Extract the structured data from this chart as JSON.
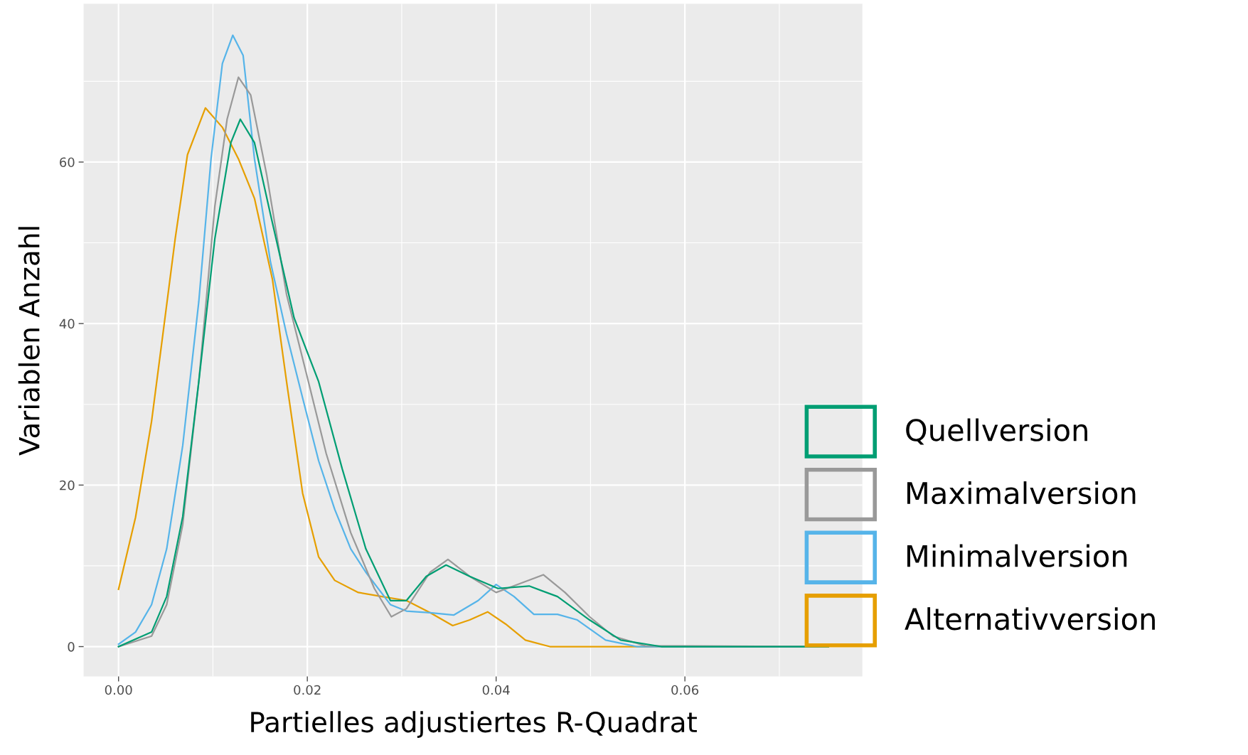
{
  "chart_data": {
    "type": "line",
    "xlabel": "Partielles adjustiertes R-Quadrat",
    "ylabel": "Variablen Anzahl",
    "xlim": [
      -0.0037,
      0.0788
    ],
    "ylim": [
      -3.7,
      79.6
    ],
    "xticks": [
      {
        "value": 0,
        "label": "0.00"
      },
      {
        "value": 0.02,
        "label": "0.02"
      },
      {
        "value": 0.04,
        "label": "0.04"
      },
      {
        "value": 0.06,
        "label": "0.06"
      }
    ],
    "yticks": [
      0,
      20,
      40,
      60
    ],
    "grid": true,
    "legend": "right",
    "marker": "none",
    "line_style": "solid",
    "series": [
      {
        "name": "Quellversion",
        "color": "#009E73",
        "x": [
          0,
          0.0035,
          0.0051,
          0.0068,
          0.0085,
          0.0102,
          0.0119,
          0.0129,
          0.0144,
          0.0161,
          0.0186,
          0.0212,
          0.0237,
          0.0262,
          0.0288,
          0.0305,
          0.0326,
          0.0347,
          0.0372,
          0.0402,
          0.0435,
          0.0465,
          0.0499,
          0.0532,
          0.0575,
          0.0752
        ],
        "values": [
          0,
          1.8,
          6.2,
          16.1,
          32.8,
          50.5,
          62.4,
          65.3,
          62.4,
          53.5,
          40.7,
          32.8,
          22,
          12.1,
          5.7,
          5.7,
          8.7,
          10.1,
          8.7,
          7.2,
          7.5,
          6.2,
          3.3,
          0.8,
          0,
          0
        ]
      },
      {
        "name": "Maximalversion",
        "color": "#999999",
        "x": [
          0,
          0.0035,
          0.0051,
          0.0068,
          0.0085,
          0.0102,
          0.0115,
          0.0127,
          0.014,
          0.0157,
          0.0178,
          0.0199,
          0.022,
          0.0246,
          0.0271,
          0.0289,
          0.0305,
          0.033,
          0.0349,
          0.0372,
          0.04,
          0.0423,
          0.045,
          0.0473,
          0.0499,
          0.0524,
          0.0558,
          0.0752
        ],
        "values": [
          0,
          1.3,
          5.2,
          15.1,
          32.8,
          54.5,
          65.3,
          70.5,
          68.3,
          58.4,
          43.6,
          33.8,
          23.9,
          14.1,
          7.2,
          3.7,
          4.7,
          9.2,
          10.8,
          8.7,
          6.7,
          7.7,
          8.9,
          6.7,
          3.7,
          1.3,
          0.1,
          0
        ]
      },
      {
        "name": "Minimalversion",
        "color": "#56B4E9",
        "x": [
          0,
          0.0018,
          0.0035,
          0.0051,
          0.0068,
          0.0085,
          0.0098,
          0.011,
          0.0121,
          0.0132,
          0.0144,
          0.0161,
          0.0178,
          0.0195,
          0.0212,
          0.0229,
          0.0246,
          0.0262,
          0.0288,
          0.0305,
          0.033,
          0.0355,
          0.0381,
          0.04,
          0.0419,
          0.044,
          0.0465,
          0.0486,
          0.0516,
          0.0549,
          0.0752
        ],
        "values": [
          0.3,
          1.8,
          5.2,
          12.1,
          24.9,
          42.7,
          60.4,
          72.2,
          75.7,
          73.2,
          60.4,
          47.6,
          38.7,
          30.8,
          23,
          17,
          12.1,
          9.2,
          5.2,
          4.4,
          4.2,
          3.9,
          5.7,
          7.7,
          6.2,
          4,
          4,
          3.3,
          0.8,
          0,
          0
        ]
      },
      {
        "name": "Alternativversion",
        "color": "#E69F00",
        "x": [
          0,
          0.0018,
          0.0035,
          0.0047,
          0.006,
          0.0073,
          0.0092,
          0.011,
          0.0127,
          0.0144,
          0.0163,
          0.0178,
          0.0195,
          0.0212,
          0.0229,
          0.0254,
          0.0279,
          0.0305,
          0.033,
          0.0354,
          0.0372,
          0.0391,
          0.041,
          0.0431,
          0.0457,
          0.0752
        ],
        "values": [
          7.1,
          16,
          27.9,
          38.7,
          50.5,
          60.9,
          66.7,
          64.3,
          60.4,
          55.5,
          45.5,
          32.8,
          19,
          11.1,
          8.2,
          6.7,
          6.2,
          5.7,
          4.2,
          2.6,
          3.3,
          4.3,
          2.8,
          0.8,
          0,
          0
        ]
      }
    ]
  }
}
